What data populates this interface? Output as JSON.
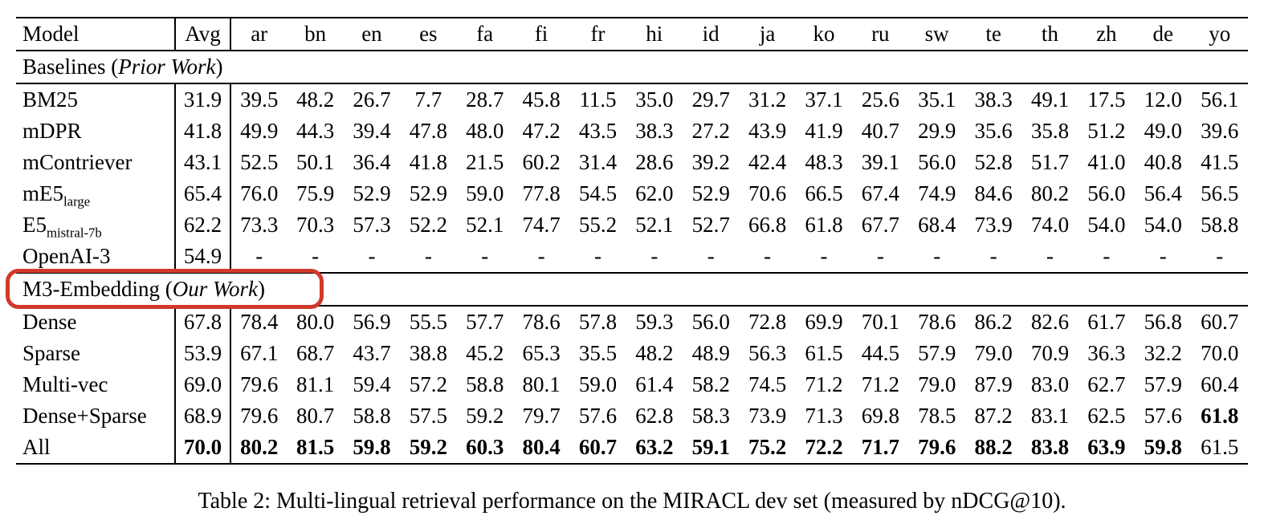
{
  "table": {
    "columns": [
      "Model",
      "Avg",
      "ar",
      "bn",
      "en",
      "es",
      "fa",
      "fi",
      "fr",
      "hi",
      "id",
      "ja",
      "ko",
      "ru",
      "sw",
      "te",
      "th",
      "zh",
      "de",
      "yo"
    ],
    "highlight_color": "#d0392b",
    "sections": [
      {
        "header": {
          "pre": "Baselines (",
          "italic": "Prior Work",
          "post": ")"
        },
        "highlighted": false,
        "rows": [
          {
            "model": {
              "name": "BM25",
              "sub": ""
            },
            "values": [
              "31.9",
              "39.5",
              "48.2",
              "26.7",
              "7.7",
              "28.7",
              "45.8",
              "11.5",
              "35.0",
              "29.7",
              "31.2",
              "37.1",
              "25.6",
              "35.1",
              "38.3",
              "49.1",
              "17.5",
              "12.0",
              "56.1"
            ],
            "bold": []
          },
          {
            "model": {
              "name": "mDPR",
              "sub": ""
            },
            "values": [
              "41.8",
              "49.9",
              "44.3",
              "39.4",
              "47.8",
              "48.0",
              "47.2",
              "43.5",
              "38.3",
              "27.2",
              "43.9",
              "41.9",
              "40.7",
              "29.9",
              "35.6",
              "35.8",
              "51.2",
              "49.0",
              "39.6"
            ],
            "bold": []
          },
          {
            "model": {
              "name": "mContriever",
              "sub": ""
            },
            "values": [
              "43.1",
              "52.5",
              "50.1",
              "36.4",
              "41.8",
              "21.5",
              "60.2",
              "31.4",
              "28.6",
              "39.2",
              "42.4",
              "48.3",
              "39.1",
              "56.0",
              "52.8",
              "51.7",
              "41.0",
              "40.8",
              "41.5"
            ],
            "bold": []
          },
          {
            "model": {
              "name": "mE5",
              "sub": "large"
            },
            "values": [
              "65.4",
              "76.0",
              "75.9",
              "52.9",
              "52.9",
              "59.0",
              "77.8",
              "54.5",
              "62.0",
              "52.9",
              "70.6",
              "66.5",
              "67.4",
              "74.9",
              "84.6",
              "80.2",
              "56.0",
              "56.4",
              "56.5"
            ],
            "bold": []
          },
          {
            "model": {
              "name": "E5",
              "sub": "mistral-7b"
            },
            "values": [
              "62.2",
              "73.3",
              "70.3",
              "57.3",
              "52.2",
              "52.1",
              "74.7",
              "55.2",
              "52.1",
              "52.7",
              "66.8",
              "61.8",
              "67.7",
              "68.4",
              "73.9",
              "74.0",
              "54.0",
              "54.0",
              "58.8"
            ],
            "bold": []
          },
          {
            "model": {
              "name": "OpenAI-3",
              "sub": ""
            },
            "values": [
              "54.9",
              "-",
              "-",
              "-",
              "-",
              "-",
              "-",
              "-",
              "-",
              "-",
              "-",
              "-",
              "-",
              "-",
              "-",
              "-",
              "-",
              "-",
              "-"
            ],
            "bold": []
          }
        ]
      },
      {
        "header": {
          "pre": "M3-Embedding (",
          "italic": "Our Work",
          "post": ")"
        },
        "highlighted": true,
        "rows": [
          {
            "model": {
              "name": "Dense",
              "sub": ""
            },
            "values": [
              "67.8",
              "78.4",
              "80.0",
              "56.9",
              "55.5",
              "57.7",
              "78.6",
              "57.8",
              "59.3",
              "56.0",
              "72.8",
              "69.9",
              "70.1",
              "78.6",
              "86.2",
              "82.6",
              "61.7",
              "56.8",
              "60.7"
            ],
            "bold": []
          },
          {
            "model": {
              "name": "Sparse",
              "sub": ""
            },
            "values": [
              "53.9",
              "67.1",
              "68.7",
              "43.7",
              "38.8",
              "45.2",
              "65.3",
              "35.5",
              "48.2",
              "48.9",
              "56.3",
              "61.5",
              "44.5",
              "57.9",
              "79.0",
              "70.9",
              "36.3",
              "32.2",
              "70.0"
            ],
            "bold": []
          },
          {
            "model": {
              "name": "Multi-vec",
              "sub": ""
            },
            "values": [
              "69.0",
              "79.6",
              "81.1",
              "59.4",
              "57.2",
              "58.8",
              "80.1",
              "59.0",
              "61.4",
              "58.2",
              "74.5",
              "71.2",
              "71.2",
              "79.0",
              "87.9",
              "83.0",
              "62.7",
              "57.9",
              "60.4"
            ],
            "bold": []
          },
          {
            "model": {
              "name": "Dense+Sparse",
              "sub": ""
            },
            "values": [
              "68.9",
              "79.6",
              "80.7",
              "58.8",
              "57.5",
              "59.2",
              "79.7",
              "57.6",
              "62.8",
              "58.3",
              "73.9",
              "71.3",
              "69.8",
              "78.5",
              "87.2",
              "83.1",
              "62.5",
              "57.6",
              "61.8"
            ],
            "bold": [
              18
            ]
          },
          {
            "model": {
              "name": "All",
              "sub": ""
            },
            "values": [
              "70.0",
              "80.2",
              "81.5",
              "59.8",
              "59.2",
              "60.3",
              "80.4",
              "60.7",
              "63.2",
              "59.1",
              "75.2",
              "72.2",
              "71.7",
              "79.6",
              "88.2",
              "83.8",
              "63.9",
              "59.8",
              "61.5"
            ],
            "bold": [
              0,
              1,
              2,
              3,
              4,
              5,
              6,
              7,
              8,
              9,
              10,
              11,
              12,
              13,
              14,
              15,
              16,
              17
            ]
          }
        ]
      }
    ],
    "caption": "Table 2: Multi-lingual retrieval performance on the MIRACL dev set (measured by nDCG@10)."
  }
}
